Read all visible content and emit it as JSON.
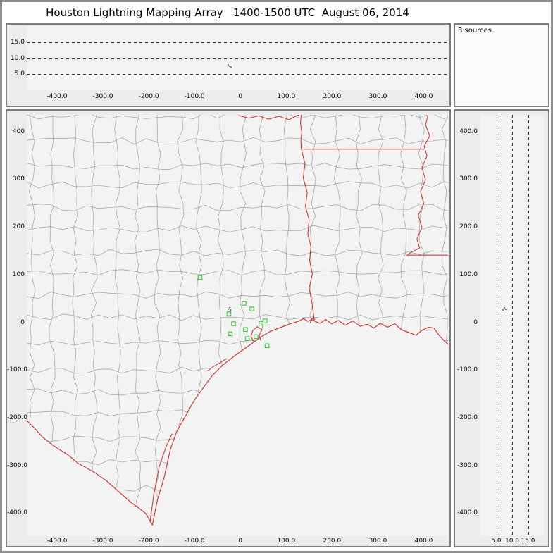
{
  "title": "Houston Lightning Mapping Array   1400-1500 UTC  August 06, 2014",
  "panels": {
    "sources": {
      "label": "3 sources"
    },
    "alt_ew": {
      "description": "altitude vs east-west distance"
    },
    "plan": {
      "description": "plan view map"
    },
    "alt_ns": {
      "description": "altitude vs north-south distance"
    }
  },
  "chart_data": {
    "type": "scatter",
    "title": "Houston Lightning Mapping Array",
    "time_window_utc": "1400-1500 UTC",
    "date": "August 06, 2014",
    "sources_count": 3,
    "colors": {
      "station_green": "#3cc43c",
      "state_border_red": "#cc2b2b",
      "county_gray": "#a8a8a8",
      "dash_black": "#333333",
      "plot_bg": "#f3f3f3"
    },
    "axes": {
      "ew_km": {
        "ticks": [
          -400,
          -300,
          -200,
          -100,
          0,
          100,
          200,
          300,
          400
        ],
        "tick_labels": [
          "-400.0",
          "-300.0",
          "-200.0",
          "-100.0",
          "0",
          "100.0",
          "200.0",
          "300.0",
          "400.0"
        ],
        "range": [
          -466,
          453
        ]
      },
      "ns_km": {
        "ticks": [
          400,
          300,
          200,
          100,
          0,
          -100,
          -200,
          -300,
          -400
        ],
        "tick_labels_map": [
          "400",
          "300",
          "200",
          "100",
          "0",
          "-100.0",
          "-200.0",
          "-300.0",
          "-400.0"
        ],
        "tick_labels_right": [
          "400.0",
          "300.0",
          "200.0",
          "100.0",
          "0",
          "-100.0",
          "-200.0",
          "-300.0",
          "-400.0"
        ],
        "range": [
          -448,
          435
        ]
      },
      "alt_km": {
        "dash_levels": [
          5,
          10,
          15
        ],
        "tick_labels": [
          "5.0",
          "10.0",
          "15.0"
        ],
        "range": [
          0,
          20
        ]
      }
    },
    "lma_stations_km": [
      [
        -88,
        94
      ],
      [
        8,
        40
      ],
      [
        25,
        28
      ],
      [
        -25,
        18
      ],
      [
        -15,
        -3
      ],
      [
        45,
        -2
      ],
      [
        54,
        3
      ],
      [
        -22,
        -24
      ],
      [
        11,
        -15
      ],
      [
        15,
        -34
      ],
      [
        34,
        -30
      ],
      [
        58,
        -49
      ]
    ],
    "lightning_sources": [
      {
        "ew_km": -26,
        "ns_km": 28,
        "alt_km": 7.9
      },
      {
        "ew_km": -23,
        "ns_km": 31,
        "alt_km": 7.5
      },
      {
        "ew_km": -21,
        "ns_km": 26,
        "alt_km": 7.2
      }
    ],
    "map": {
      "coast": [
        [
          -192,
          -425
        ],
        [
          -181,
          -372
        ],
        [
          -166,
          -324
        ],
        [
          -153,
          -267
        ],
        [
          -139,
          -229
        ],
        [
          -126,
          -207
        ],
        [
          -101,
          -164
        ],
        [
          -84,
          -141
        ],
        [
          -61,
          -111
        ],
        [
          -38,
          -89
        ],
        [
          -11,
          -69
        ],
        [
          8,
          -56
        ],
        [
          27,
          -43
        ],
        [
          46,
          -30
        ],
        [
          65,
          -19
        ],
        [
          84,
          -12
        ],
        [
          109,
          -3
        ],
        [
          128,
          3
        ],
        [
          138,
          8
        ],
        [
          147,
          2
        ],
        [
          156,
          6
        ],
        [
          161,
          3
        ],
        [
          174,
          -2
        ],
        [
          186,
          6
        ],
        [
          199,
          -3
        ],
        [
          214,
          4
        ],
        [
          229,
          -6
        ],
        [
          245,
          3
        ],
        [
          261,
          -8
        ],
        [
          277,
          -4
        ],
        [
          291,
          -12
        ],
        [
          305,
          -2
        ],
        [
          321,
          -10
        ],
        [
          337,
          -3
        ],
        [
          352,
          -16
        ],
        [
          367,
          -21
        ],
        [
          383,
          -27
        ],
        [
          397,
          -16
        ],
        [
          411,
          -10
        ],
        [
          422,
          -12
        ],
        [
          435,
          -29
        ],
        [
          444,
          -38
        ],
        [
          455,
          -47
        ]
      ],
      "rio_grande": [
        [
          -192,
          -425
        ],
        [
          -206,
          -401
        ],
        [
          -222,
          -389
        ],
        [
          -238,
          -378
        ],
        [
          -264,
          -356
        ],
        [
          -291,
          -333
        ],
        [
          -319,
          -314
        ],
        [
          -353,
          -296
        ],
        [
          -379,
          -276
        ],
        [
          -407,
          -259
        ],
        [
          -431,
          -241
        ],
        [
          -452,
          -219
        ],
        [
          -466,
          -206
        ]
      ],
      "state_borders": [
        [
          [
            -5,
            434
          ],
          [
            18,
            428
          ],
          [
            40,
            433
          ],
          [
            62,
            426
          ],
          [
            84,
            432
          ],
          [
            106,
            425
          ],
          [
            120,
            432
          ],
          [
            133,
            437
          ]
        ],
        [
          [
            133,
            437
          ],
          [
            131,
            418
          ],
          [
            134,
            398
          ],
          [
            132,
            380
          ],
          [
            133,
            363
          ]
        ],
        [
          [
            133,
            363
          ],
          [
            402,
            363
          ]
        ],
        [
          [
            133,
            363
          ],
          [
            141,
            332
          ],
          [
            137,
            303
          ],
          [
            146,
            272
          ],
          [
            142,
            243
          ],
          [
            150,
            215
          ],
          [
            147,
            186
          ],
          [
            154,
            158
          ],
          [
            151,
            130
          ],
          [
            157,
            101
          ],
          [
            150,
            72
          ],
          [
            156,
            42
          ],
          [
            160,
            14
          ],
          [
            161,
            3
          ]
        ],
        [
          [
            410,
            437
          ],
          [
            404,
            414
          ],
          [
            413,
            391
          ],
          [
            401,
            369
          ],
          [
            407,
            349
          ],
          [
            396,
            324
          ],
          [
            404,
            299
          ],
          [
            393,
            274
          ],
          [
            400,
            249
          ],
          [
            388,
            224
          ],
          [
            396,
            199
          ],
          [
            385,
            175
          ],
          [
            391,
            156
          ],
          [
            373,
            147
          ],
          [
            363,
            141
          ]
        ],
        [
          [
            363,
            141
          ],
          [
            455,
            141
          ]
        ]
      ],
      "coast_detail": [
        [
          [
            -197,
            -419
          ],
          [
            -189,
            -361
          ],
          [
            -177,
            -302
          ],
          [
            -163,
            -263
          ],
          [
            -149,
            -233
          ]
        ],
        [
          [
            30,
            -42
          ],
          [
            23,
            -30
          ],
          [
            27,
            -17
          ],
          [
            37,
            -9
          ],
          [
            47,
            -15
          ],
          [
            41,
            -27
          ],
          [
            45,
            -39
          ]
        ],
        [
          [
            -72,
            -102
          ],
          [
            -58,
            -92
          ],
          [
            -43,
            -84
          ],
          [
            -30,
            -76
          ]
        ],
        [
          [
            152,
            -2
          ],
          [
            156,
            8
          ],
          [
            163,
            6
          ]
        ]
      ]
    }
  }
}
